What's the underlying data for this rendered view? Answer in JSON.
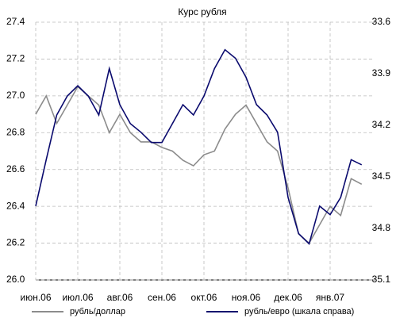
{
  "chart_data": {
    "type": "line",
    "title": "Курс рубля",
    "categories": [
      "июн.06",
      null,
      null,
      null,
      "июл.06",
      null,
      null,
      null,
      "авг.06",
      null,
      null,
      null,
      "сен.06",
      null,
      null,
      null,
      "окт.06",
      null,
      null,
      null,
      "ноя.06",
      null,
      null,
      null,
      "дек.06",
      null,
      null,
      null,
      "янв.07",
      null,
      null,
      null
    ],
    "series": [
      {
        "name": "рубль/доллар",
        "color": "#8c8c8c",
        "axis": "y",
        "values": [
          26.9,
          27.0,
          26.85,
          26.95,
          27.05,
          27.0,
          26.95,
          26.8,
          26.9,
          26.8,
          26.75,
          26.75,
          26.72,
          26.7,
          26.65,
          26.62,
          26.68,
          26.7,
          26.82,
          26.9,
          26.95,
          26.85,
          26.75,
          26.7,
          26.5,
          26.25,
          26.2,
          26.3,
          26.4,
          26.35,
          26.55,
          26.52
        ]
      },
      {
        "name": "рубль/евро (шкала справа)",
        "color": "#0a0a6e",
        "axis": "y2",
        "values": [
          34.67,
          34.4,
          34.14,
          34.03,
          33.97,
          34.03,
          34.14,
          33.87,
          34.08,
          34.19,
          34.24,
          34.3,
          34.3,
          34.19,
          34.08,
          34.14,
          34.03,
          33.87,
          33.76,
          33.81,
          33.92,
          34.08,
          34.14,
          34.24,
          34.62,
          34.83,
          34.89,
          34.67,
          34.72,
          34.62,
          34.4,
          34.43
        ]
      }
    ],
    "ylim": [
      26.0,
      27.4
    ],
    "yticks": [
      {
        "value": 26.0,
        "label": "26.0"
      },
      26.2,
      26.4,
      26.6,
      26.8,
      {
        "value": 27.0,
        "label": "27.0"
      },
      27.2,
      27.4
    ],
    "y2lim": [
      35.1,
      33.6
    ],
    "y2ticks": [
      33.6,
      33.9,
      34.2,
      34.5,
      34.8,
      35.1
    ],
    "grid": true,
    "legend": "bottom"
  }
}
